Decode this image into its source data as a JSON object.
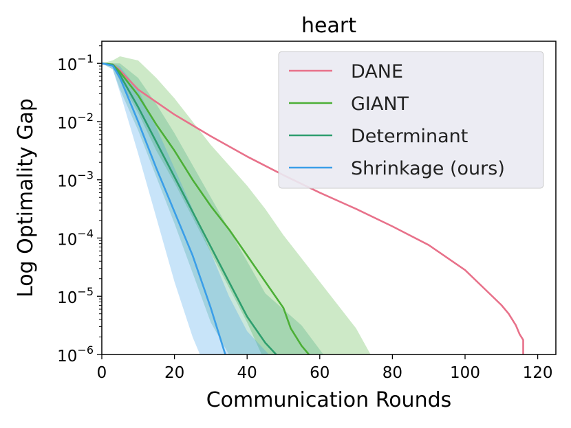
{
  "chart_data": {
    "type": "line",
    "title": "heart",
    "xlabel": "Communication Rounds",
    "ylabel": "Log Optimality Gap",
    "yscale": "log",
    "xlim": [
      0,
      125
    ],
    "ylim_log10": [
      -6,
      -0.62
    ],
    "x_ticks": [
      0,
      20,
      40,
      60,
      80,
      100,
      120
    ],
    "y_ticks": [
      {
        "value": -1,
        "base": "10",
        "exp": "−1"
      },
      {
        "value": -2,
        "base": "10",
        "exp": "−2"
      },
      {
        "value": -3,
        "base": "10",
        "exp": "−3"
      },
      {
        "value": -4,
        "base": "10",
        "exp": "−4"
      },
      {
        "value": -5,
        "base": "10",
        "exp": "−5"
      },
      {
        "value": -6,
        "base": "10",
        "exp": "−6"
      }
    ],
    "legend_position": "top-right",
    "series": [
      {
        "name": "DANE",
        "color": "#e8718a",
        "x": [
          0,
          3,
          5,
          10,
          20,
          30,
          40,
          50,
          60,
          70,
          80,
          90,
          100,
          105,
          110,
          112,
          114,
          115,
          116,
          116
        ],
        "log10_y": [
          -1,
          -1.02,
          -1.12,
          -1.45,
          -1.88,
          -2.25,
          -2.6,
          -2.92,
          -3.22,
          -3.5,
          -3.8,
          -4.12,
          -4.55,
          -4.85,
          -5.15,
          -5.3,
          -5.5,
          -5.65,
          -5.75,
          -6
        ]
      },
      {
        "name": "GIANT",
        "color": "#4caf36",
        "band_alpha": 0.28,
        "x": [
          0,
          3,
          5,
          10,
          15,
          20,
          25,
          30,
          35,
          40,
          45,
          50,
          52,
          55,
          57
        ],
        "log10_y": [
          -1,
          -1.02,
          -1.15,
          -1.55,
          -2.05,
          -2.5,
          -3.0,
          -3.45,
          -3.85,
          -4.3,
          -4.75,
          -5.2,
          -5.55,
          -5.85,
          -6
        ],
        "upper_log10_y": [
          -1,
          -0.95,
          -0.88,
          -0.95,
          -1.25,
          -1.6,
          -2.0,
          -2.4,
          -2.75,
          -3.1,
          -3.5,
          -3.95,
          -4.35,
          -4.75,
          -5.15,
          -5.55,
          -6
        ],
        "upper_x": [
          0,
          3,
          5,
          10,
          15,
          20,
          25,
          30,
          35,
          40,
          45,
          50,
          55,
          60,
          65,
          70,
          74
        ],
        "lower_log10_y": [
          -1,
          -1.05,
          -1.3,
          -1.85,
          -2.5,
          -3.05,
          -3.65,
          -4.25,
          -4.85,
          -5.45,
          -6
        ],
        "lower_x": [
          0,
          3,
          5,
          10,
          15,
          20,
          25,
          30,
          35,
          40,
          44
        ]
      },
      {
        "name": "Determinant",
        "color": "#2e9e6e",
        "band_alpha": 0.25,
        "x": [
          0,
          3,
          5,
          10,
          15,
          20,
          25,
          30,
          35,
          40,
          45,
          48
        ],
        "log10_y": [
          -1,
          -1.03,
          -1.2,
          -1.75,
          -2.35,
          -2.95,
          -3.55,
          -4.15,
          -4.75,
          -5.35,
          -5.8,
          -6
        ],
        "upper_log10_y": [
          -1,
          -1.0,
          -1.0,
          -1.25,
          -1.7,
          -2.2,
          -2.75,
          -3.3,
          -3.85,
          -4.4,
          -4.95,
          -5.5,
          -6
        ],
        "upper_x": [
          0,
          3,
          5,
          10,
          15,
          20,
          25,
          30,
          35,
          40,
          45,
          55,
          61
        ],
        "lower_log10_y": [
          -1,
          -1.1,
          -1.45,
          -2.15,
          -2.95,
          -3.75,
          -4.6,
          -5.45,
          -6
        ],
        "lower_x": [
          0,
          3,
          5,
          10,
          15,
          20,
          25,
          30,
          35
        ]
      },
      {
        "name": "Shrinkage (ours)",
        "color": "#3a9ee8",
        "band_alpha": 0.28,
        "x": [
          0,
          3,
          5,
          10,
          15,
          20,
          25,
          30,
          33,
          34
        ],
        "log10_y": [
          -1,
          -1.04,
          -1.25,
          -2.0,
          -2.8,
          -3.55,
          -4.3,
          -5.2,
          -5.8,
          -6
        ],
        "upper_log10_y": [
          -1,
          -1.0,
          -1.05,
          -1.45,
          -2.1,
          -2.8,
          -3.5,
          -4.25,
          -5.0,
          -5.6,
          -6
        ],
        "upper_x": [
          0,
          3,
          5,
          10,
          15,
          20,
          25,
          30,
          35,
          40,
          46
        ],
        "lower_log10_y": [
          -1,
          -1.1,
          -1.5,
          -2.55,
          -3.65,
          -4.75,
          -5.7,
          -6
        ],
        "lower_x": [
          0,
          3,
          5,
          10,
          15,
          20,
          25,
          27
        ]
      }
    ]
  }
}
